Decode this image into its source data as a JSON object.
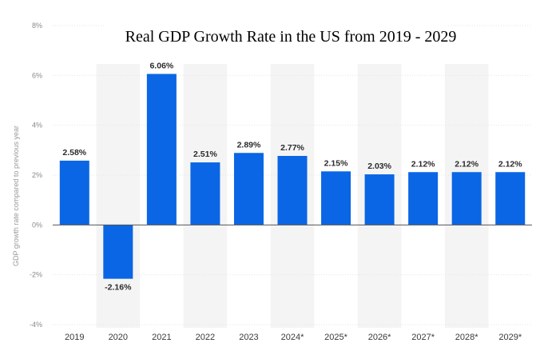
{
  "chart_data": {
    "type": "bar",
    "title": "Real GDP Growth Rate in the US from 2019 - 2029",
    "ylabel": "GDP growth rate compared to previous year",
    "categories": [
      "2019",
      "2020",
      "2021",
      "2022",
      "2023",
      "2024*",
      "2025*",
      "2026*",
      "2027*",
      "2028*",
      "2029*"
    ],
    "values": [
      2.58,
      -2.16,
      6.06,
      2.51,
      2.89,
      2.77,
      2.15,
      2.03,
      2.12,
      2.12,
      2.12
    ],
    "value_labels": [
      "2.58%",
      "-2.16%",
      "6.06%",
      "2.51%",
      "2.89%",
      "2.77%",
      "2.15%",
      "2.03%",
      "2.12%",
      "2.12%",
      "2.12%"
    ],
    "ylim": [
      -4,
      8
    ],
    "yticks": [
      -4,
      -2,
      0,
      2,
      4,
      6,
      8
    ],
    "ytick_labels": [
      "-4%",
      "-2%",
      "0%",
      "2%",
      "4%",
      "6%",
      "8%"
    ],
    "bar_color": "#0a66e4",
    "band_color": "#f4f4f4",
    "grid": true,
    "legend": "none"
  }
}
